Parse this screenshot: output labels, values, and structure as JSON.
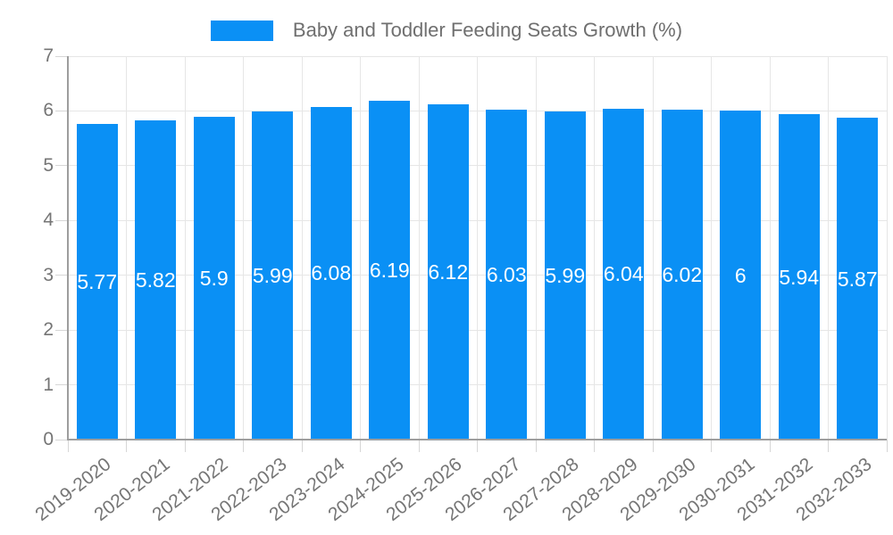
{
  "chart_data": {
    "type": "bar",
    "title": "Baby and Toddler Feeding Seats Growth (%)",
    "categories": [
      "2019-2020",
      "2020-2021",
      "2021-2022",
      "2022-2023",
      "2023-2024",
      "2024-2025",
      "2025-2026",
      "2026-2027",
      "2027-2028",
      "2028-2029",
      "2029-2030",
      "2030-2031",
      "2031-2032",
      "2032-2033"
    ],
    "values": [
      5.77,
      5.82,
      5.9,
      5.99,
      6.08,
      6.19,
      6.12,
      6.03,
      5.99,
      6.04,
      6.02,
      6,
      5.94,
      5.87
    ],
    "value_labels": [
      "5.77",
      "5.82",
      "5.9",
      "5.99",
      "6.08",
      "6.19",
      "6.12",
      "6.03",
      "5.99",
      "6.04",
      "6.02",
      "6",
      "5.94",
      "5.87"
    ],
    "xlabel": "",
    "ylabel": "",
    "ylim": [
      0,
      7
    ],
    "yticks": [
      0,
      1,
      2,
      3,
      4,
      5,
      6,
      7
    ],
    "grid": true,
    "legend_position": "top",
    "colors": {
      "bar": "#0a90f5",
      "bar_label": "#ffffff",
      "grid": "#e6e6e6",
      "axis": "#9e9e9e",
      "tick": "#d6d6d6",
      "axis_label": "#757575",
      "title": "#6f6f6f",
      "background": "#ffffff"
    }
  }
}
